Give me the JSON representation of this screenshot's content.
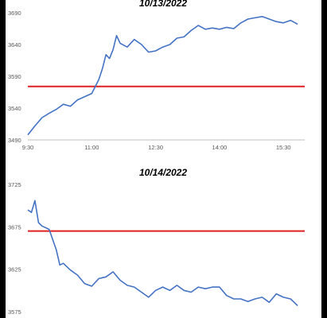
{
  "chart_data": [
    {
      "type": "line",
      "title": "10/13/2022",
      "xlabel": "",
      "ylabel": "",
      "x_ticks": [
        "9:30",
        "11:00",
        "12:30",
        "14:00",
        "15:30"
      ],
      "y_ticks": [
        3490,
        3540,
        3590,
        3640,
        3690
      ],
      "ylim": [
        3490,
        3690
      ],
      "grid": false,
      "series": [
        {
          "color": "#4472c4",
          "x": [
            "9:30",
            "9:40",
            "9:50",
            "10:00",
            "10:10",
            "10:20",
            "10:30",
            "10:40",
            "10:50",
            "11:00",
            "11:10",
            "11:15",
            "11:20",
            "11:25",
            "11:30",
            "11:35",
            "11:40",
            "11:50",
            "12:00",
            "12:10",
            "12:20",
            "12:30",
            "12:40",
            "12:50",
            "13:00",
            "13:10",
            "13:20",
            "13:30",
            "13:40",
            "13:50",
            "14:00",
            "14:10",
            "14:20",
            "14:30",
            "14:40",
            "14:50",
            "15:00",
            "15:10",
            "15:20",
            "15:30",
            "15:40",
            "15:50"
          ],
          "values": [
            3498,
            3512,
            3525,
            3532,
            3538,
            3546,
            3543,
            3553,
            3558,
            3563,
            3585,
            3602,
            3624,
            3618,
            3632,
            3654,
            3642,
            3636,
            3648,
            3640,
            3628,
            3630,
            3636,
            3640,
            3650,
            3652,
            3662,
            3670,
            3664,
            3666,
            3664,
            3667,
            3665,
            3674,
            3680,
            3682,
            3684,
            3680,
            3676,
            3674,
            3678,
            3672
          ]
        }
      ],
      "reference_line": {
        "value": 3574,
        "color": "#e02020"
      }
    },
    {
      "type": "line",
      "title": "10/14/2022",
      "xlabel": "",
      "ylabel": "",
      "x_ticks": [],
      "y_ticks": [
        3575,
        3625,
        3675,
        3725
      ],
      "ylim": [
        3575,
        3725
      ],
      "grid": false,
      "series": [
        {
          "color": "#4472c4",
          "x": [
            "9:30",
            "9:35",
            "9:40",
            "9:45",
            "9:50",
            "10:00",
            "10:10",
            "10:15",
            "10:20",
            "10:30",
            "10:40",
            "10:50",
            "11:00",
            "11:10",
            "11:20",
            "11:30",
            "11:40",
            "11:50",
            "12:00",
            "12:10",
            "12:20",
            "12:30",
            "12:40",
            "12:50",
            "13:00",
            "13:10",
            "13:20",
            "13:30",
            "13:40",
            "13:50",
            "14:00",
            "14:10",
            "14:20",
            "14:30",
            "14:40",
            "14:50",
            "15:00",
            "15:10",
            "15:20",
            "15:30",
            "15:40",
            "15:50"
          ],
          "values": [
            3695,
            3692,
            3706,
            3680,
            3676,
            3672,
            3648,
            3630,
            3632,
            3624,
            3618,
            3608,
            3605,
            3614,
            3616,
            3622,
            3612,
            3606,
            3604,
            3598,
            3592,
            3600,
            3604,
            3600,
            3606,
            3600,
            3598,
            3604,
            3602,
            3604,
            3604,
            3594,
            3590,
            3590,
            3587,
            3590,
            3592,
            3586,
            3596,
            3592,
            3590,
            3582
          ]
        }
      ],
      "reference_line": {
        "value": 3670,
        "color": "#e02020"
      }
    }
  ]
}
